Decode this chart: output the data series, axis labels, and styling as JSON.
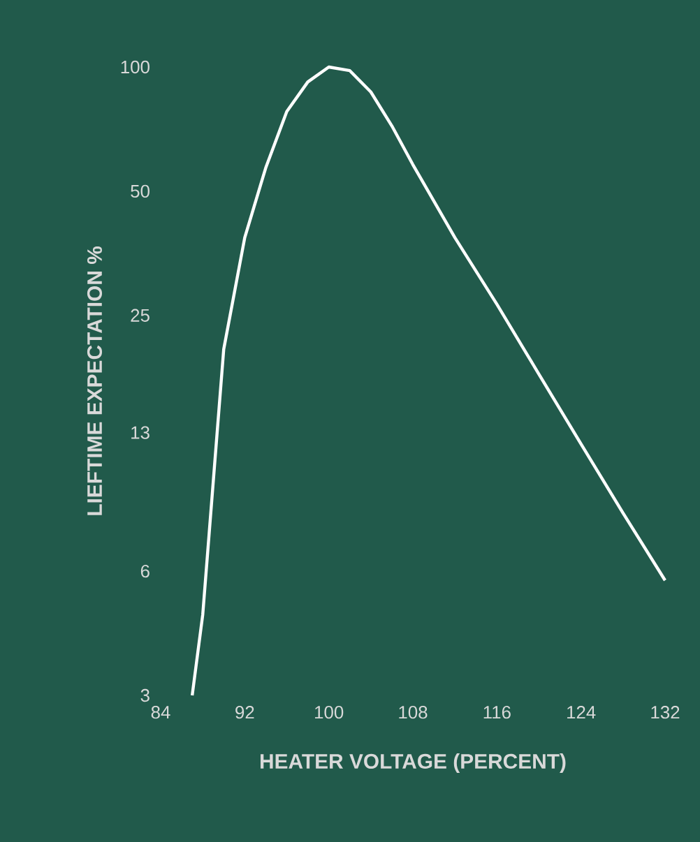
{
  "chart_data": {
    "type": "line",
    "xlabel": "HEATER VOLTAGE (PERCENT)",
    "ylabel": "LIEFTIME EXPECTATION %",
    "log": "y",
    "xlim": [
      84,
      132
    ],
    "xticks": [
      84,
      92,
      100,
      108,
      116,
      124,
      132
    ],
    "ylim": [
      3,
      100
    ],
    "yticks": [
      3,
      6,
      13,
      25,
      50,
      100
    ],
    "marker": "none",
    "line_style": "solid",
    "series": [
      {
        "color": "#ffffff",
        "x": [
          87,
          88,
          90,
          92,
          94,
          96,
          98,
          100,
          102,
          104,
          106,
          108,
          112,
          116,
          120,
          124,
          128,
          132
        ],
        "values": [
          3.0,
          4.7,
          20.7,
          38.6,
          57,
          78,
          92,
          100,
          98,
          87,
          72,
          58,
          38.6,
          26.6,
          18,
          12.2,
          8.3,
          5.7
        ]
      }
    ]
  }
}
